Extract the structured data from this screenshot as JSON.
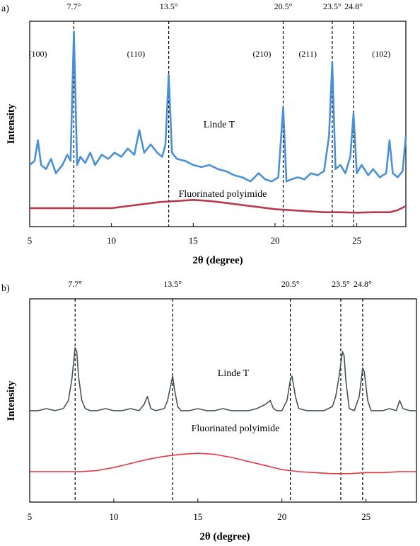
{
  "chart_data": [
    {
      "panel": "a)",
      "type": "line",
      "xlabel": "2θ (degree)",
      "ylabel": "Intensity",
      "xlim": [
        5,
        28
      ],
      "xticks": [
        5,
        10,
        15,
        20,
        25
      ],
      "grid": false,
      "reference_lines": [
        {
          "x": 7.7,
          "label": "7.7°"
        },
        {
          "x": 13.5,
          "label": "13.5°"
        },
        {
          "x": 20.5,
          "label": "20.5°"
        },
        {
          "x": 23.5,
          "label": "23.5°"
        },
        {
          "x": 24.8,
          "label": "24.8°"
        }
      ],
      "annotations": [
        {
          "x": 5.5,
          "text": "(100)"
        },
        {
          "x": 11.5,
          "text": "(110)"
        },
        {
          "x": 19.2,
          "text": "(210)"
        },
        {
          "x": 22.0,
          "text": "(211)"
        },
        {
          "x": 26.5,
          "text": "(102)"
        }
      ],
      "series": [
        {
          "name": "Linde T",
          "color": "#4a90d9",
          "x": [
            5,
            5.3,
            5.5,
            5.7,
            6,
            6.3,
            6.6,
            7,
            7.3,
            7.5,
            7.7,
            7.9,
            8.1,
            8.4,
            8.7,
            9,
            9.4,
            9.8,
            10.2,
            10.6,
            11,
            11.4,
            11.7,
            12,
            12.4,
            12.8,
            13.1,
            13.3,
            13.5,
            13.7,
            14,
            14.5,
            15,
            15.5,
            16,
            16.5,
            17,
            17.5,
            18,
            18.5,
            19,
            19.4,
            19.8,
            20.2,
            20.5,
            20.7,
            21,
            21.4,
            21.8,
            22.2,
            22.6,
            23,
            23.3,
            23.5,
            23.7,
            24,
            24.3,
            24.6,
            24.8,
            25,
            25.3,
            25.7,
            26,
            26.4,
            26.8,
            27,
            27.2,
            27.5,
            27.8,
            28
          ],
          "y": [
            0.3,
            0.32,
            0.42,
            0.3,
            0.28,
            0.33,
            0.26,
            0.3,
            0.35,
            0.32,
            0.95,
            0.3,
            0.34,
            0.31,
            0.36,
            0.3,
            0.35,
            0.33,
            0.36,
            0.34,
            0.38,
            0.35,
            0.47,
            0.36,
            0.4,
            0.36,
            0.34,
            0.4,
            0.74,
            0.36,
            0.33,
            0.32,
            0.3,
            0.29,
            0.3,
            0.28,
            0.27,
            0.25,
            0.24,
            0.22,
            0.26,
            0.23,
            0.22,
            0.24,
            0.58,
            0.22,
            0.23,
            0.24,
            0.23,
            0.26,
            0.25,
            0.27,
            0.44,
            0.8,
            0.28,
            0.3,
            0.26,
            0.34,
            0.55,
            0.26,
            0.3,
            0.25,
            0.28,
            0.24,
            0.26,
            0.42,
            0.26,
            0.24,
            0.27,
            0.44
          ]
        },
        {
          "name": "Fluorinated polyimide",
          "color": "#b83a4b",
          "x": [
            5,
            6,
            7,
            8,
            9,
            10,
            11,
            12,
            13,
            14,
            15,
            16,
            17,
            18,
            19,
            20,
            21,
            22,
            23,
            24,
            25,
            26,
            27,
            27.5,
            28
          ],
          "y": [
            0.09,
            0.09,
            0.09,
            0.09,
            0.09,
            0.09,
            0.1,
            0.11,
            0.12,
            0.125,
            0.13,
            0.125,
            0.115,
            0.105,
            0.095,
            0.085,
            0.08,
            0.075,
            0.07,
            0.07,
            0.068,
            0.07,
            0.07,
            0.08,
            0.1
          ]
        }
      ],
      "labels": {
        "peak_row_title": "",
        "series_a": "Linde T",
        "series_b": "Fluorinated polyimide"
      }
    },
    {
      "panel": "b)",
      "type": "line",
      "xlabel": "2θ (degree)",
      "ylabel": "Intensity",
      "xlim": [
        5,
        28
      ],
      "xticks": [
        5,
        10,
        15,
        20,
        25
      ],
      "grid": false,
      "reference_lines": [
        {
          "x": 7.7,
          "label": "7.7°"
        },
        {
          "x": 13.5,
          "label": "13.5°"
        },
        {
          "x": 20.5,
          "label": "20.5°"
        },
        {
          "x": 23.5,
          "label": "23.5°"
        },
        {
          "x": 24.8,
          "label": "24.8°"
        }
      ],
      "series": [
        {
          "name": "Linde T",
          "color": "#46554f",
          "x": [
            5,
            5.5,
            6,
            6.5,
            7,
            7.3,
            7.5,
            7.7,
            7.8,
            7.9,
            8.1,
            8.3,
            8.6,
            9,
            9.5,
            10,
            10.5,
            11,
            11.5,
            11.8,
            12,
            12.2,
            12.5,
            13,
            13.2,
            13.4,
            13.5,
            13.6,
            13.8,
            14,
            14.5,
            15,
            15.5,
            16,
            16.5,
            17,
            17.5,
            18,
            18.5,
            19,
            19.3,
            19.5,
            19.7,
            20,
            20.3,
            20.5,
            20.6,
            20.8,
            21,
            21.5,
            22,
            22.5,
            23,
            23.2,
            23.4,
            23.6,
            23.7,
            23.8,
            24,
            24.3,
            24.6,
            24.8,
            24.9,
            25.1,
            25.3,
            25.6,
            26,
            26.4,
            26.8,
            27,
            27.2,
            27.6,
            28
          ],
          "y": [
            0.45,
            0.45,
            0.46,
            0.45,
            0.46,
            0.5,
            0.6,
            0.76,
            0.74,
            0.62,
            0.5,
            0.46,
            0.45,
            0.45,
            0.46,
            0.45,
            0.45,
            0.46,
            0.45,
            0.48,
            0.52,
            0.46,
            0.45,
            0.46,
            0.5,
            0.58,
            0.62,
            0.56,
            0.47,
            0.45,
            0.45,
            0.46,
            0.45,
            0.45,
            0.46,
            0.45,
            0.45,
            0.45,
            0.46,
            0.48,
            0.5,
            0.46,
            0.45,
            0.45,
            0.5,
            0.6,
            0.62,
            0.52,
            0.46,
            0.45,
            0.45,
            0.45,
            0.47,
            0.52,
            0.62,
            0.74,
            0.72,
            0.6,
            0.46,
            0.45,
            0.52,
            0.66,
            0.64,
            0.5,
            0.45,
            0.45,
            0.45,
            0.46,
            0.45,
            0.5,
            0.46,
            0.45,
            0.45
          ]
        },
        {
          "name": "Fluorinated polyimide",
          "color": "#e8353e",
          "x": [
            5,
            6,
            7,
            8,
            9,
            10,
            11,
            12,
            13,
            14,
            15,
            16,
            17,
            18,
            19,
            20,
            21,
            22,
            23,
            24,
            25,
            26,
            27,
            28
          ],
          "y": [
            0.15,
            0.15,
            0.15,
            0.15,
            0.155,
            0.17,
            0.19,
            0.21,
            0.225,
            0.235,
            0.24,
            0.235,
            0.22,
            0.2,
            0.18,
            0.16,
            0.15,
            0.145,
            0.14,
            0.14,
            0.145,
            0.145,
            0.15,
            0.15
          ]
        }
      ],
      "labels": {
        "series_a": "Linde T",
        "series_b": "Fluorinated polyimide"
      }
    }
  ]
}
